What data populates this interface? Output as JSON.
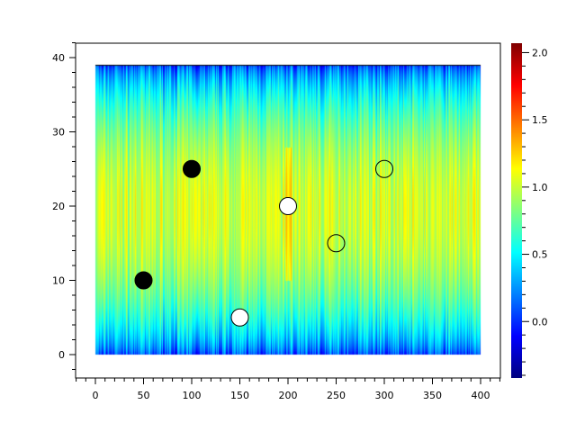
{
  "chart_data": {
    "type": "heatmap",
    "title": "",
    "xlabel": "",
    "ylabel": "",
    "xlim": [
      -20,
      420
    ],
    "ylim": [
      -3,
      42
    ],
    "field_x_range": [
      0,
      400
    ],
    "field_y_range": [
      0,
      39
    ],
    "x_ticks": [
      "0",
      "50",
      "100",
      "150",
      "200",
      "250",
      "300",
      "350",
      "400"
    ],
    "y_ticks": [
      "0",
      "10",
      "20",
      "30",
      "40"
    ],
    "colormap": "jet",
    "colorbar": {
      "range": [
        -0.42,
        2.07
      ],
      "ticks": [
        "0.0",
        "0.5",
        "1.0",
        "1.5",
        "2.0"
      ]
    },
    "markers": [
      {
        "x": 50,
        "y": 10,
        "style": "filled",
        "color": "#000000"
      },
      {
        "x": 100,
        "y": 25,
        "style": "filled",
        "color": "#000000"
      },
      {
        "x": 150,
        "y": 5,
        "style": "filled",
        "color": "#ffffff"
      },
      {
        "x": 200,
        "y": 20,
        "style": "filled",
        "color": "#ffffff"
      },
      {
        "x": 250,
        "y": 15,
        "style": "open",
        "color": "#000000"
      },
      {
        "x": 300,
        "y": 25,
        "style": "open",
        "color": "#000000"
      }
    ],
    "grid": false,
    "legend": "none"
  }
}
